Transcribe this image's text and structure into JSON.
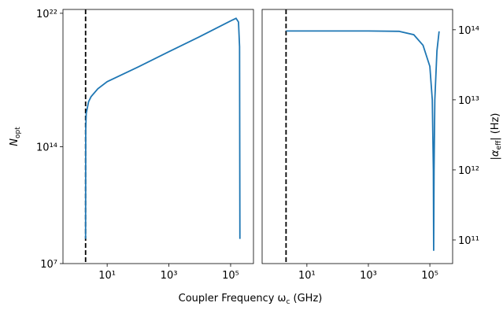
{
  "chart_data": [
    {
      "type": "line",
      "xscale": "log",
      "yscale": "log",
      "yaxis_side": "left",
      "ylabel": {
        "text": "N",
        "sub": "opt"
      },
      "xlim": [
        0.37,
        550000
      ],
      "ylim": [
        10000000.0,
        1.7e+22
      ],
      "xticks": [
        {
          "value": 10,
          "label": "10¹"
        },
        {
          "value": 1000,
          "label": "10³"
        },
        {
          "value": 100000,
          "label": "10⁵"
        }
      ],
      "yticks": [
        {
          "value": 10000000.0,
          "label": "10⁷"
        },
        {
          "value": 100000000000000.0,
          "label": "10¹⁴"
        },
        {
          "value": 1e+22,
          "label": "10²²"
        }
      ],
      "vline": 2.0,
      "series": [
        {
          "color": "#1f77b4",
          "x": [
            2.0,
            2.02,
            2.1,
            2.5,
            3,
            5,
            10,
            100,
            1000,
            10000,
            100000,
            150000,
            180000,
            195000,
            200000
          ],
          "values": [
            300000000.0,
            1000000000000000.0,
            1e+16,
            5e+16,
            1e+17,
            3e+17,
            8e+17,
            6e+18,
            5e+19,
            4e+20,
            3.5e+21,
            5e+21,
            3e+21,
            1e+20,
            300000000.0
          ]
        }
      ]
    },
    {
      "type": "line",
      "xscale": "log",
      "yscale": "log",
      "yaxis_side": "right",
      "ylabel": {
        "text": "|α",
        "sub": "eff",
        "after": "| (Hz)"
      },
      "xlim": [
        0.35,
        550000
      ],
      "ylim": [
        46000000000.0,
        195000000000000.0
      ],
      "xticks": [
        {
          "value": 10,
          "label": "10¹"
        },
        {
          "value": 1000,
          "label": "10³"
        },
        {
          "value": 100000,
          "label": "10⁵"
        }
      ],
      "yticks": [
        {
          "value": 100000000000.0,
          "label": "10¹¹"
        },
        {
          "value": 1000000000000.0,
          "label": "10¹²"
        },
        {
          "value": 10000000000000.0,
          "label": "10¹³"
        },
        {
          "value": 100000000000000.0,
          "label": "10¹⁴"
        }
      ],
      "vline": 2.1,
      "series": [
        {
          "color": "#1f77b4",
          "x": [
            2.1,
            10,
            1000,
            10000,
            30000,
            60000,
            100000,
            120000,
            130000,
            133000,
            137000,
            145000,
            170000,
            200000
          ],
          "values": [
            96000000000000.0,
            96000000000000.0,
            96000000000000.0,
            95000000000000.0,
            85000000000000.0,
            60000000000000.0,
            30000000000000.0,
            10000000000000.0,
            1000000000000.0,
            70000000000.0,
            1000000000000.0,
            10000000000000.0,
            50000000000000.0,
            95000000000000.0
          ]
        }
      ]
    }
  ],
  "xlabel": {
    "text": "Coupler Frequency ω",
    "sub": "c",
    "after": " (GHz)"
  }
}
